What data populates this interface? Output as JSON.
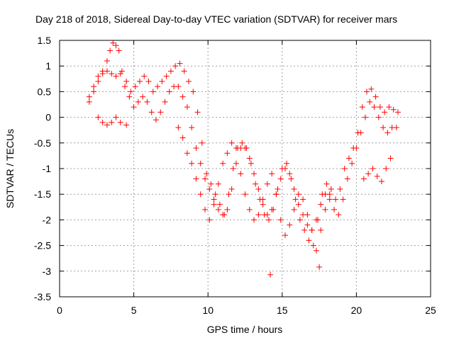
{
  "chart_data": {
    "type": "scatter",
    "title": "Day 218 of 2018, Sidereal Day-to-day VTEC variation (SDTVAR) for receiver mars",
    "xlabel": "GPS time / hours",
    "ylabel": "SDTVAR / TECUs",
    "xlim": [
      0,
      25
    ],
    "ylim": [
      -3.5,
      1.5
    ],
    "xticks": [
      "0",
      "5",
      "10",
      "15",
      "20",
      "25"
    ],
    "yticks": [
      "1.5",
      "1",
      "0.5",
      "0",
      "-0.5",
      "-1",
      "-1.5",
      "-2",
      "-2.5",
      "-3",
      "-3.5"
    ],
    "grid": true,
    "marker": "+",
    "color": "#ff0000",
    "series": [
      {
        "name": "SDTVAR",
        "x": [
          2.0,
          2.3,
          2.6,
          2.9,
          3.2,
          3.4,
          3.6,
          3.8,
          4.0,
          4.2,
          4.5,
          4.8,
          5.1,
          5.4,
          5.7,
          6.0,
          6.3,
          6.6,
          6.9,
          7.2,
          7.5,
          7.8,
          8.1,
          8.4,
          8.7,
          9.0,
          9.3,
          9.6,
          9.9,
          10.2,
          10.5,
          10.8,
          11.1,
          11.4,
          11.7,
          12.0,
          12.3,
          12.6,
          12.9,
          13.2,
          13.5,
          13.8,
          14.1,
          14.4,
          14.7,
          15.0,
          15.3,
          15.6,
          15.9,
          16.2,
          16.5,
          16.8,
          17.1,
          17.4,
          17.7,
          18.0,
          18.3,
          18.6,
          18.9,
          19.2,
          19.5,
          19.8,
          20.1,
          20.4,
          20.7,
          21.0,
          21.3,
          21.6,
          21.9,
          22.2,
          22.5,
          22.8,
          2.0,
          2.3,
          2.6,
          2.9,
          3.2,
          3.5,
          3.8,
          4.1,
          4.4,
          4.7,
          5.0,
          5.3,
          5.6,
          5.9,
          6.2,
          6.5,
          6.8,
          7.1,
          7.4,
          7.7,
          8.0,
          8.3,
          8.6,
          8.9,
          9.2,
          9.5,
          9.8,
          10.1,
          10.4,
          10.7,
          11.0,
          11.3,
          11.6,
          11.9,
          12.2,
          12.5,
          12.8,
          13.1,
          13.4,
          13.7,
          14.0,
          14.3,
          14.6,
          14.9,
          15.2,
          15.5,
          15.8,
          16.1,
          16.4,
          16.7,
          17.0,
          17.3,
          17.6,
          17.9,
          18.2,
          18.5,
          18.8,
          19.1,
          19.4,
          19.7,
          20.0,
          20.3,
          20.6,
          20.9,
          21.2,
          21.5,
          21.8,
          22.1,
          22.4,
          22.7,
          2.6,
          2.9,
          3.2,
          3.5,
          3.8,
          4.1,
          8.0,
          8.3,
          8.6,
          8.9,
          9.2,
          9.5,
          9.8,
          10.1,
          10.4,
          10.7,
          11.0,
          11.3,
          11.6,
          11.9,
          12.2,
          12.5,
          12.8,
          13.1,
          13.4,
          13.7,
          14.0,
          14.3,
          14.6,
          14.9,
          15.2,
          15.5,
          15.8,
          16.1,
          16.4,
          16.7,
          17.0,
          17.3,
          17.6,
          17.9,
          18.2,
          20.5,
          20.8,
          21.1,
          21.4,
          21.7,
          22.0,
          22.3,
          14.2,
          17.5,
          4.5
        ],
        "y": [
          0.4,
          0.6,
          0.8,
          0.9,
          1.1,
          1.3,
          1.45,
          1.4,
          1.3,
          0.9,
          0.7,
          0.5,
          0.6,
          0.7,
          0.8,
          0.7,
          0.5,
          0.6,
          0.7,
          0.8,
          0.9,
          1.0,
          1.05,
          0.9,
          0.7,
          0.5,
          0.1,
          -0.5,
          -1.1,
          -1.3,
          -1.5,
          -1.7,
          -1.9,
          -1.5,
          -1.0,
          -0.6,
          -0.5,
          -0.6,
          -0.9,
          -1.3,
          -1.6,
          -1.9,
          -2.0,
          -1.8,
          -1.4,
          -1.0,
          -0.9,
          -1.2,
          -1.6,
          -2.0,
          -2.2,
          -2.4,
          -2.5,
          -2.0,
          -1.5,
          -1.3,
          -1.4,
          -1.6,
          -1.4,
          -1.0,
          -0.8,
          -0.6,
          -0.3,
          0.2,
          0.5,
          0.55,
          0.4,
          0.2,
          0.1,
          0.2,
          0.15,
          0.1,
          0.3,
          0.5,
          0.7,
          0.85,
          0.9,
          0.85,
          0.8,
          0.85,
          0.6,
          0.4,
          0.2,
          0.3,
          0.4,
          0.3,
          0.1,
          -0.05,
          0.1,
          0.3,
          0.5,
          0.6,
          0.6,
          0.4,
          0.2,
          -0.2,
          -0.6,
          -0.9,
          -1.2,
          -1.4,
          -1.6,
          -1.8,
          -1.9,
          -1.8,
          -1.4,
          -0.9,
          -0.6,
          -0.6,
          -0.8,
          -1.1,
          -1.4,
          -1.7,
          -1.9,
          -1.8,
          -1.5,
          -1.2,
          -1.0,
          -1.1,
          -1.4,
          -1.7,
          -1.9,
          -2.1,
          -2.2,
          -2.0,
          -1.7,
          -1.5,
          -1.6,
          -1.8,
          -1.9,
          -1.6,
          -1.2,
          -0.9,
          -0.6,
          -0.3,
          0.0,
          0.3,
          0.2,
          0.0,
          -0.2,
          -0.3,
          -0.2,
          -0.2,
          0.0,
          -0.1,
          -0.15,
          -0.1,
          0.0,
          -0.1,
          -0.2,
          -0.4,
          -0.7,
          -0.9,
          -1.2,
          -1.5,
          -1.8,
          -2.0,
          -1.7,
          -1.3,
          -0.9,
          -0.7,
          -0.5,
          -0.6,
          -1.1,
          -1.5,
          -1.8,
          -2.0,
          -1.9,
          -1.6,
          -1.3,
          -1.1,
          -1.5,
          -2.0,
          -2.3,
          -2.1,
          -1.8,
          -1.5,
          -1.6,
          -1.9,
          -2.2,
          -2.6,
          -2.2,
          -1.8,
          -1.5,
          -1.2,
          -1.1,
          -1.0,
          -1.15,
          -1.25,
          -1.0,
          -0.8,
          -3.07,
          -2.92,
          -0.15
        ]
      }
    ]
  }
}
